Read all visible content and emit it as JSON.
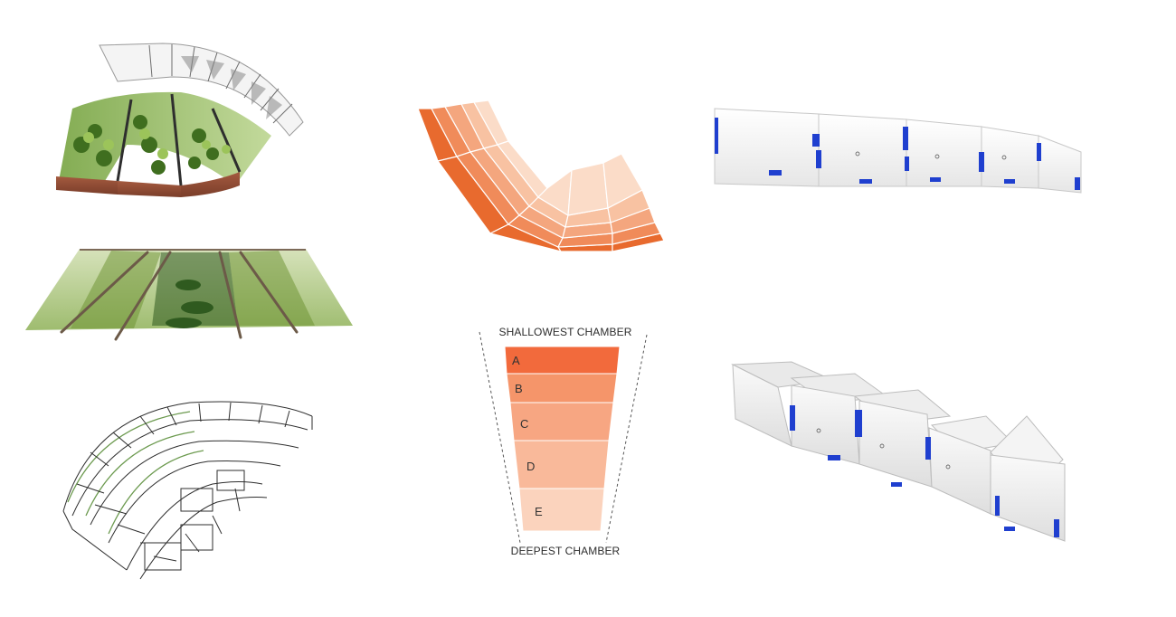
{
  "diagram": {
    "top_label": "SHALLOWEST CHAMBER",
    "bottom_label": "DEEPEST CHAMBER",
    "chambers": [
      {
        "letter": "A",
        "color": "#f26a3c"
      },
      {
        "letter": "B",
        "color": "#f5956a"
      },
      {
        "letter": "C",
        "color": "#f7a682"
      },
      {
        "letter": "D",
        "color": "#f9b99a"
      },
      {
        "letter": "E",
        "color": "#fbd3bd"
      }
    ]
  },
  "fan_colors": [
    "#e86a2e",
    "#f08b5a",
    "#f4a67e",
    "#f8c2a2",
    "#fbdcc8"
  ],
  "colors": {
    "soil": "#8a4b35",
    "plant_dark": "#4e7a2a",
    "plant_light": "#9cc45a",
    "tape_blue": "#1f3fcf",
    "board_white": "#f7f7f7",
    "wire_green": "#6c9a4f"
  }
}
